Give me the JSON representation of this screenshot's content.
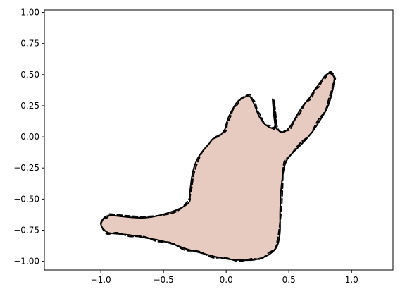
{
  "chart_data": {
    "type": "line",
    "title": "",
    "xlabel": "",
    "ylabel": "",
    "xlim": [
      -1.45,
      1.33
    ],
    "ylim": [
      -1.07,
      1.02
    ],
    "grid": false,
    "fill_color": "#e8cbc0",
    "xticks": [
      {
        "value": -1.0,
        "label": "−1.0"
      },
      {
        "value": -0.5,
        "label": "−0.5"
      },
      {
        "value": 0.0,
        "label": "0.0"
      },
      {
        "value": 0.5,
        "label": "0.5"
      },
      {
        "value": 1.0,
        "label": "1.0"
      }
    ],
    "yticks": [
      {
        "value": 1.0,
        "label": "1.00"
      },
      {
        "value": 0.75,
        "label": "0.75"
      },
      {
        "value": 0.5,
        "label": "0.50"
      },
      {
        "value": 0.25,
        "label": "0.25"
      },
      {
        "value": 0.0,
        "label": "0.00"
      },
      {
        "value": -0.25,
        "label": "−0.25"
      },
      {
        "value": -0.5,
        "label": "−0.50"
      },
      {
        "value": -0.75,
        "label": "−0.75"
      },
      {
        "value": -1.0,
        "label": "−1.00"
      }
    ],
    "series": [
      {
        "style": "solid",
        "color": "#000000",
        "x": [
          -0.92,
          -0.65,
          -0.43,
          -0.3,
          -0.29,
          -0.27,
          -0.24,
          -0.2,
          -0.14,
          -0.11,
          -0.07,
          -0.04,
          -0.01,
          0.0,
          0.02,
          0.05,
          0.08,
          0.11,
          0.15,
          0.18,
          0.2,
          0.22,
          0.24,
          0.26,
          0.3,
          0.34,
          0.37,
          0.39,
          0.39,
          0.38,
          0.37,
          0.39,
          0.42,
          0.46,
          0.5,
          0.54,
          0.58,
          0.62,
          0.67,
          0.7,
          0.73,
          0.76,
          0.78,
          0.8,
          0.83,
          0.86,
          0.86,
          0.85,
          0.83,
          0.8,
          0.74,
          0.68,
          0.6,
          0.52,
          0.47,
          0.44,
          0.43,
          0.43,
          0.42,
          0.4,
          0.35,
          0.29,
          0.21,
          0.11,
          0.0,
          -0.1,
          -0.21,
          -0.32,
          -0.43,
          -0.54,
          -0.65,
          -0.76,
          -0.86,
          -0.94,
          -0.98,
          -1.0,
          -0.99,
          -0.96,
          -0.92
        ],
        "y": [
          -0.63,
          -0.65,
          -0.6,
          -0.53,
          -0.45,
          -0.3,
          -0.2,
          -0.13,
          -0.06,
          -0.02,
          0.0,
          0.02,
          0.06,
          0.1,
          0.16,
          0.22,
          0.27,
          0.3,
          0.32,
          0.33,
          0.31,
          0.27,
          0.22,
          0.17,
          0.11,
          0.08,
          0.07,
          0.09,
          0.14,
          0.22,
          0.3,
          0.1,
          0.05,
          0.04,
          0.07,
          0.13,
          0.2,
          0.26,
          0.32,
          0.37,
          0.41,
          0.45,
          0.48,
          0.5,
          0.51,
          0.48,
          0.44,
          0.38,
          0.3,
          0.22,
          0.12,
          0.03,
          -0.06,
          -0.14,
          -0.22,
          -0.4,
          -0.6,
          -0.75,
          -0.83,
          -0.89,
          -0.94,
          -0.97,
          -0.99,
          -0.99,
          -0.98,
          -0.96,
          -0.93,
          -0.9,
          -0.86,
          -0.83,
          -0.81,
          -0.79,
          -0.78,
          -0.77,
          -0.74,
          -0.7,
          -0.67,
          -0.64,
          -0.63
        ]
      },
      {
        "style": "dashed",
        "color": "#000000",
        "x": [
          -0.93,
          -0.66,
          -0.42,
          -0.31,
          -0.28,
          -0.26,
          -0.23,
          -0.19,
          -0.15,
          -0.1,
          -0.06,
          -0.03,
          0.0,
          0.01,
          0.03,
          0.06,
          0.09,
          0.12,
          0.16,
          0.19,
          0.21,
          0.23,
          0.25,
          0.27,
          0.31,
          0.35,
          0.38,
          0.4,
          0.4,
          0.39,
          0.38,
          0.4,
          0.43,
          0.47,
          0.51,
          0.55,
          0.59,
          0.63,
          0.68,
          0.71,
          0.74,
          0.77,
          0.79,
          0.81,
          0.84,
          0.87,
          0.86,
          0.84,
          0.82,
          0.79,
          0.73,
          0.67,
          0.59,
          0.51,
          0.46,
          0.45,
          0.44,
          0.42,
          0.41,
          0.39,
          0.34,
          0.28,
          0.2,
          0.1,
          -0.01,
          -0.11,
          -0.22,
          -0.33,
          -0.44,
          -0.55,
          -0.66,
          -0.77,
          -0.87,
          -0.95,
          -0.99,
          -1.0,
          -0.98,
          -0.95,
          -0.93
        ],
        "y": [
          -0.62,
          -0.64,
          -0.61,
          -0.52,
          -0.44,
          -0.31,
          -0.21,
          -0.12,
          -0.07,
          -0.01,
          0.01,
          0.03,
          0.05,
          0.11,
          0.15,
          0.23,
          0.26,
          0.31,
          0.33,
          0.34,
          0.3,
          0.28,
          0.21,
          0.18,
          0.1,
          0.09,
          0.06,
          0.1,
          0.13,
          0.23,
          0.29,
          0.11,
          0.04,
          0.05,
          0.06,
          0.14,
          0.19,
          0.27,
          0.31,
          0.38,
          0.4,
          0.46,
          0.47,
          0.51,
          0.52,
          0.47,
          0.45,
          0.37,
          0.31,
          0.21,
          0.13,
          0.02,
          -0.05,
          -0.15,
          -0.21,
          -0.41,
          -0.59,
          -0.76,
          -0.82,
          -0.9,
          -0.93,
          -0.98,
          -0.98,
          -1.0,
          -0.97,
          -0.97,
          -0.92,
          -0.91,
          -0.85,
          -0.84,
          -0.8,
          -0.8,
          -0.77,
          -0.78,
          -0.73,
          -0.71,
          -0.66,
          -0.65,
          -0.62
        ]
      }
    ]
  }
}
